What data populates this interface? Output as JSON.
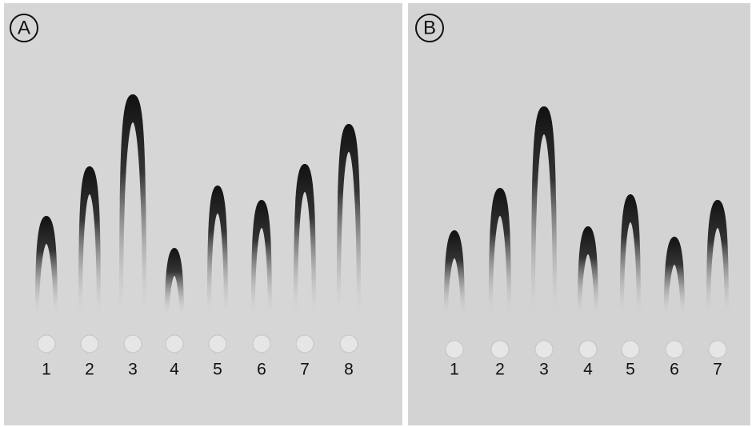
{
  "panels": [
    {
      "label": "A",
      "lanes": [
        "1",
        "2",
        "3",
        "4",
        "5",
        "6",
        "7",
        "8"
      ]
    },
    {
      "label": "B",
      "lanes": [
        "1",
        "2",
        "3",
        "4",
        "5",
        "6",
        "7"
      ]
    }
  ]
}
